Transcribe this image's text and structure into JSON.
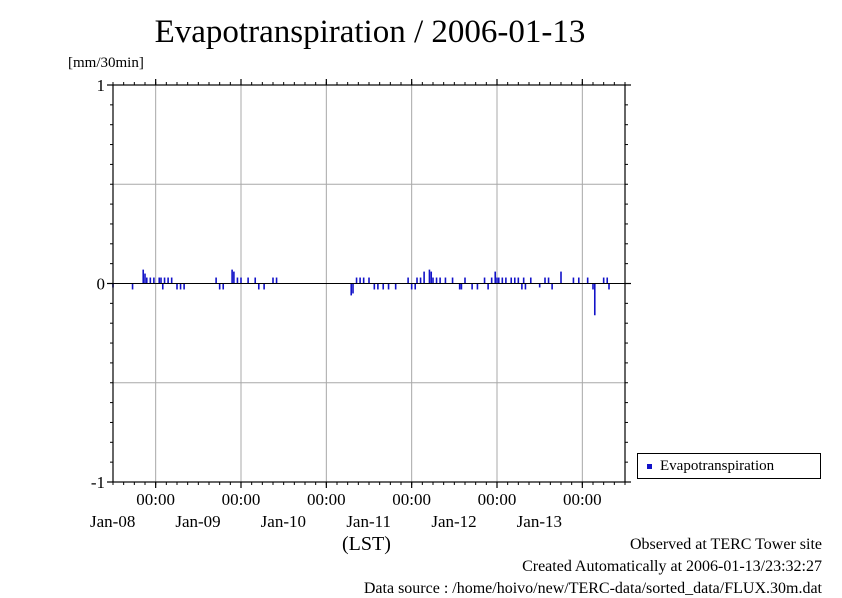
{
  "header": {
    "title": "Evapotranspiration / 2006-01-13",
    "unit_label": "[mm/30min]"
  },
  "legend": {
    "label": "Evapotranspiration",
    "color": "#1212c8"
  },
  "footer": {
    "observed": "Observed at TERC Tower site",
    "created": "Created Automatically at 2006-01-13/23:32:27",
    "source": "Data source : /home/hoivo/new/TERC-data/sorted_data/FLUX.30m.dat"
  },
  "chart_data": {
    "type": "bar",
    "title": "Evapotranspiration / 2006-01-13",
    "ylabel": "[mm/30min]",
    "xlabel": "(LST)",
    "ylim": [
      -1,
      1
    ],
    "xlim": [
      "2006-01-07 12:00",
      "2006-01-13 12:00"
    ],
    "y_ticks": [
      "1",
      "0",
      "-1"
    ],
    "x_ticks": [
      {
        "time": "00:00",
        "date": "Jan-08"
      },
      {
        "time": "00:00",
        "date": "Jan-09"
      },
      {
        "time": "00:00",
        "date": "Jan-10"
      },
      {
        "time": "00:00",
        "date": "Jan-11"
      },
      {
        "time": "00:00",
        "date": "Jan-12"
      },
      {
        "time": "00:00",
        "date": "Jan-13"
      }
    ],
    "grid": true,
    "legend_position": "right",
    "series": [
      {
        "name": "Evapotranspiration",
        "color": "#1212c8",
        "start": "2006-01-07 12:00",
        "interval_minutes": 30,
        "values": [
          -0.02,
          0,
          0,
          0,
          0,
          0,
          0,
          0,
          0,
          0,
          0,
          -0.03,
          0,
          0,
          0,
          0,
          0,
          0.07,
          0.05,
          0.03,
          0,
          0.03,
          0,
          0.03,
          0,
          0,
          0.03,
          0.03,
          -0.03,
          0.03,
          0,
          0.03,
          0,
          0.03,
          0,
          0,
          -0.03,
          0,
          -0.03,
          0,
          -0.03,
          0,
          0,
          0,
          0,
          0,
          0,
          0,
          0,
          0,
          0,
          0,
          0,
          0,
          0,
          0,
          0,
          0,
          0.03,
          0,
          -0.03,
          0,
          -0.03,
          0,
          0,
          0,
          0,
          0.07,
          0.06,
          0,
          0.03,
          0,
          0.03,
          0,
          0,
          0,
          0.03,
          0,
          0,
          0,
          0.03,
          0,
          -0.03,
          0,
          0,
          -0.03,
          0,
          0,
          0,
          0,
          0.03,
          0,
          0.03,
          0,
          0,
          0,
          0,
          0,
          0,
          0,
          0,
          0,
          0,
          0,
          0,
          0,
          0,
          0,
          0,
          0,
          0,
          0,
          0,
          0,
          0,
          0,
          0,
          0,
          0,
          0,
          0,
          0,
          0,
          0,
          0,
          0,
          0,
          0,
          0,
          0,
          0,
          0,
          0,
          0,
          -0.06,
          -0.05,
          0,
          0.03,
          0,
          0.03,
          0,
          0.03,
          0,
          0,
          0.03,
          0,
          0,
          -0.03,
          0,
          -0.03,
          0,
          0,
          -0.03,
          0,
          0,
          -0.03,
          0,
          0,
          0,
          -0.03,
          0,
          0,
          0,
          0,
          0,
          0,
          0.03,
          0,
          -0.03,
          0,
          -0.03,
          0.03,
          0,
          0.03,
          0,
          0.06,
          0,
          0,
          0.07,
          0.06,
          0.03,
          0,
          0.03,
          0,
          0.03,
          0,
          0,
          0.03,
          0,
          0,
          0,
          0.03,
          0,
          0,
          0,
          -0.03,
          -0.03,
          0,
          0.03,
          0,
          0,
          0,
          -0.03,
          0,
          0,
          -0.03,
          0,
          0,
          0,
          0.03,
          0,
          -0.03,
          0,
          0.03,
          0,
          0.06,
          0.03,
          0.03,
          0,
          0.03,
          0,
          0.03,
          0,
          0,
          0.03,
          0,
          0.03,
          0,
          0.03,
          0,
          -0.03,
          0.03,
          -0.03,
          0,
          0,
          0.03,
          0,
          0,
          0,
          0,
          -0.02,
          0,
          0,
          0.03,
          0,
          0.03,
          0,
          -0.03,
          0,
          0,
          0,
          0,
          0.06,
          0,
          0,
          0,
          0,
          0,
          0,
          0.03,
          0,
          0,
          0.03,
          0,
          0,
          0,
          0,
          0.03,
          0,
          0,
          -0.03,
          -0.16,
          0,
          0,
          0,
          0,
          0.03,
          0,
          0.03,
          -0.03
        ]
      }
    ]
  }
}
